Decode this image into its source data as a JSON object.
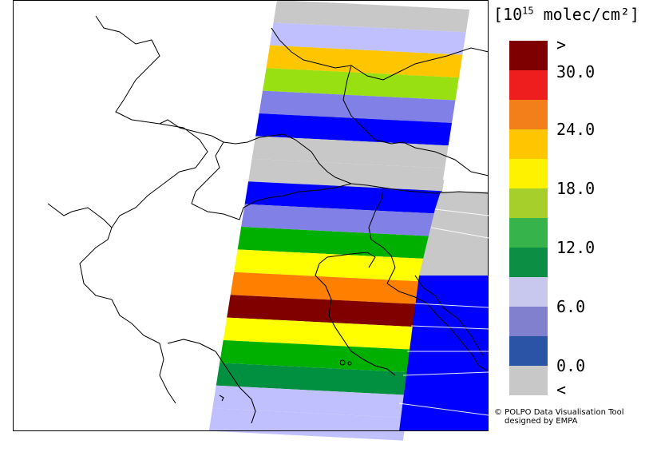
{
  "legend": {
    "unit_prefix": "[10",
    "unit_exponent": "15",
    "unit_suffix": " molec/cm²]",
    "colors": [
      "#7f0000",
      "#ef1e1e",
      "#f27f1a",
      "#ffc600",
      "#fff200",
      "#a6cf2b",
      "#36b34b",
      "#0c8f44",
      "#c8c8ee",
      "#8080cf",
      "#2b53a6",
      "#c8c8c8"
    ],
    "ticks": [
      ">",
      "30.0",
      "24.0",
      "18.0",
      "12.0",
      "6.0",
      "0.0",
      "<"
    ]
  },
  "credit": {
    "line1": "© POLPO Data Visualisation Tool",
    "line2": "designed by EMPA"
  },
  "swath": {
    "background_color": "#c8c8c8",
    "bands": [
      {
        "color": "#c8c8c8"
      },
      {
        "color": "#c0c0ff"
      },
      {
        "color": "#ffc600"
      },
      {
        "color": "#98e012"
      },
      {
        "color": "#8080e6"
      },
      {
        "color": "#0000ff"
      },
      {
        "color": "#c8c8c8"
      },
      {
        "color": "#c8c8c8"
      },
      {
        "color": "#0000ff"
      },
      {
        "color": "#8080e6"
      },
      {
        "color": "#00b000"
      },
      {
        "color": "#ffff00"
      },
      {
        "color": "#ff8000"
      },
      {
        "color": "#800000"
      },
      {
        "color": "#ffff00"
      },
      {
        "color": "#00b000"
      },
      {
        "color": "#009040"
      },
      {
        "color": "#c0c0ff"
      },
      {
        "color": "#c0c0ff"
      }
    ]
  }
}
